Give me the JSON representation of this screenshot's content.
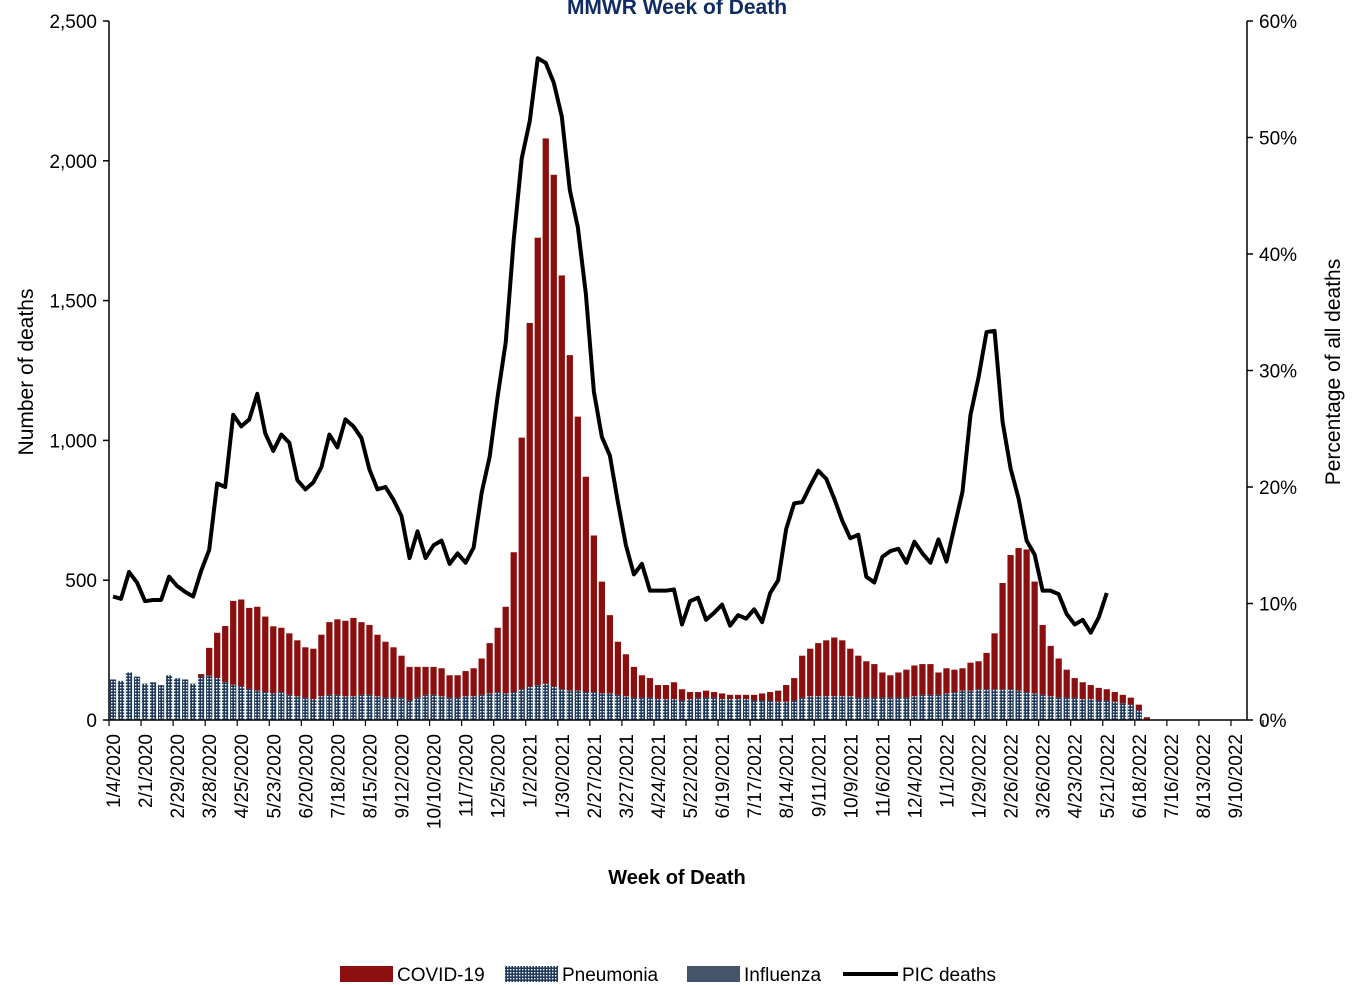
{
  "chart_data": {
    "type": "bar",
    "title": "MMWR Week of Death",
    "xlabel": "Week of Death",
    "ylabel": "Number of deaths",
    "y2label": "Percentage of all deaths",
    "ylim": [
      0,
      2500
    ],
    "y2lim": [
      0,
      60
    ],
    "yticks": [
      "0",
      "500",
      "1,000",
      "1,500",
      "2,000",
      "2,500"
    ],
    "y2ticks": [
      "0%",
      "10%",
      "20%",
      "30%",
      "40%",
      "50%",
      "60%"
    ],
    "xtick_labels": [
      "1/4/2020",
      "2/1/2020",
      "2/29/2020",
      "3/28/2020",
      "4/25/2020",
      "5/23/2020",
      "6/20/2020",
      "7/18/2020",
      "8/15/2020",
      "9/12/2020",
      "10/10/2020",
      "11/7/2020",
      "12/5/2020",
      "1/2/2021",
      "1/30/2021",
      "2/27/2021",
      "3/27/2021",
      "4/24/2021",
      "5/22/2021",
      "6/19/2021",
      "7/17/2021",
      "8/14/2021",
      "9/11/2021",
      "10/9/2021",
      "11/6/2021",
      "12/4/2021",
      "1/1/2022",
      "1/29/2022",
      "2/26/2022",
      "3/26/2022",
      "4/23/2022",
      "5/21/2022",
      "6/18/2022",
      "7/16/2022",
      "8/13/2022",
      "9/10/2022"
    ],
    "x_start": "1/4/2020",
    "week_slots": 142,
    "stacked": true,
    "legend_position": "bottom",
    "series": [
      {
        "name": "COVID-19",
        "type": "bar",
        "color": "#8B0F0F",
        "values": [
          0,
          0,
          0,
          0,
          0,
          0,
          0,
          0,
          0,
          0,
          0,
          10,
          100,
          160,
          200,
          300,
          310,
          290,
          300,
          270,
          240,
          230,
          220,
          200,
          180,
          180,
          220,
          260,
          270,
          270,
          280,
          260,
          250,
          220,
          200,
          180,
          150,
          120,
          110,
          100,
          100,
          100,
          80,
          80,
          90,
          100,
          130,
          180,
          230,
          310,
          500,
          900,
          1300,
          1600,
          1950,
          1830,
          1480,
          1200,
          980,
          770,
          560,
          400,
          280,
          190,
          150,
          110,
          80,
          70,
          50,
          50,
          60,
          40,
          25,
          20,
          25,
          20,
          20,
          15,
          15,
          15,
          20,
          25,
          30,
          40,
          60,
          80,
          150,
          170,
          190,
          200,
          210,
          200,
          170,
          150,
          130,
          120,
          90,
          80,
          90,
          100,
          110,
          110,
          110,
          80,
          90,
          80,
          80,
          100,
          100,
          130,
          200,
          380,
          480,
          510,
          510,
          400,
          250,
          180,
          140,
          100,
          70,
          60,
          50,
          45,
          40,
          35,
          30,
          25,
          20,
          10,
          0,
          0,
          0,
          0,
          0,
          0,
          0,
          0,
          0,
          0,
          0,
          0,
          0,
          0,
          0,
          0
        ]
      },
      {
        "name": "Pneumonia",
        "type": "bar",
        "color": "#2E4A6B",
        "values": [
          140,
          135,
          165,
          150,
          125,
          130,
          120,
          155,
          145,
          140,
          125,
          150,
          155,
          150,
          135,
          125,
          120,
          110,
          105,
          100,
          95,
          100,
          90,
          85,
          80,
          75,
          85,
          90,
          90,
          85,
          85,
          90,
          90,
          85,
          80,
          80,
          80,
          70,
          80,
          90,
          90,
          85,
          80,
          80,
          85,
          85,
          90,
          95,
          100,
          95,
          100,
          110,
          120,
          125,
          130,
          120,
          110,
          105,
          105,
          100,
          100,
          95,
          95,
          90,
          85,
          80,
          80,
          80,
          75,
          75,
          75,
          70,
          75,
          80,
          80,
          80,
          75,
          75,
          75,
          75,
          70,
          70,
          70,
          65,
          65,
          70,
          80,
          85,
          85,
          85,
          85,
          85,
          85,
          80,
          80,
          80,
          80,
          80,
          80,
          80,
          85,
          90,
          90,
          90,
          95,
          100,
          105,
          105,
          110,
          110,
          110,
          110,
          110,
          105,
          100,
          95,
          90,
          85,
          80,
          80,
          80,
          75,
          75,
          70,
          70,
          65,
          60,
          55,
          35,
          0,
          0,
          0,
          0,
          0,
          0,
          0,
          0,
          0,
          0,
          0,
          0,
          0
        ]
      },
      {
        "name": "Influenza",
        "type": "bar",
        "color": "#44546A",
        "values": [
          5,
          5,
          5,
          5,
          5,
          5,
          5,
          5,
          5,
          5,
          5,
          4,
          3,
          2,
          1,
          1,
          1,
          1,
          0,
          0,
          0,
          0,
          0,
          0,
          0,
          0,
          0,
          0,
          0,
          0,
          0,
          0,
          0,
          0,
          0,
          0,
          0,
          0,
          0,
          0,
          0,
          0,
          0,
          0,
          0,
          0,
          0,
          0,
          0,
          0,
          0,
          0,
          0,
          0,
          0,
          0,
          0,
          0,
          0,
          0,
          0,
          0,
          0,
          0,
          0,
          0,
          0,
          0,
          0,
          0,
          0,
          0,
          0,
          0,
          0,
          0,
          0,
          0,
          0,
          0,
          0,
          0,
          0,
          0,
          0,
          0,
          0,
          0,
          0,
          0,
          0,
          0,
          0,
          0,
          0,
          0,
          0,
          0,
          0,
          0,
          0,
          0,
          0,
          0,
          0,
          0,
          0,
          0,
          0,
          0,
          0,
          0,
          0,
          0,
          0,
          0,
          0,
          0,
          0,
          0,
          0,
          0,
          0,
          0,
          0,
          0,
          0,
          0,
          0,
          0,
          0,
          0,
          0,
          0,
          0,
          0,
          0,
          0,
          0,
          0,
          0,
          0
        ]
      },
      {
        "name": "PIC deaths",
        "type": "line",
        "axis": "right",
        "unit": "%",
        "color": "#000000",
        "values": [
          10.6,
          10.4,
          12.7,
          11.8,
          10.2,
          10.3,
          10.3,
          12.3,
          11.5,
          11.0,
          10.6,
          12.8,
          14.6,
          20.3,
          20.0,
          26.2,
          25.2,
          25.8,
          28.0,
          24.6,
          23.1,
          24.5,
          23.8,
          20.6,
          19.8,
          20.4,
          21.7,
          24.5,
          23.4,
          25.8,
          25.2,
          24.2,
          21.5,
          19.8,
          20.0,
          18.9,
          17.5,
          13.9,
          16.2,
          13.9,
          15.0,
          15.4,
          13.4,
          14.3,
          13.5,
          14.8,
          19.5,
          22.6,
          27.8,
          32.4,
          41.2,
          48.2,
          51.4,
          56.8,
          56.4,
          54.7,
          51.8,
          45.5,
          42.3,
          36.6,
          28.2,
          24.3,
          22.7,
          18.7,
          15.0,
          12.5,
          13.4,
          11.1,
          11.1,
          11.1,
          11.2,
          8.2,
          10.2,
          10.5,
          8.6,
          9.2,
          9.9,
          8.1,
          9.0,
          8.7,
          9.5,
          8.4,
          10.9,
          12.0,
          16.4,
          18.6,
          18.7,
          20.1,
          21.4,
          20.7,
          19.0,
          17.1,
          15.6,
          15.9,
          12.3,
          11.8,
          14.0,
          14.5,
          14.7,
          13.5,
          15.3,
          14.3,
          13.5,
          15.5,
          13.6,
          16.6,
          19.6,
          26.2,
          29.4,
          33.3,
          33.4,
          25.6,
          21.6,
          19.0,
          15.4,
          14.2,
          11.1,
          11.1,
          10.8,
          9.1,
          8.2,
          8.6,
          7.5,
          8.8,
          10.9
        ]
      }
    ]
  }
}
